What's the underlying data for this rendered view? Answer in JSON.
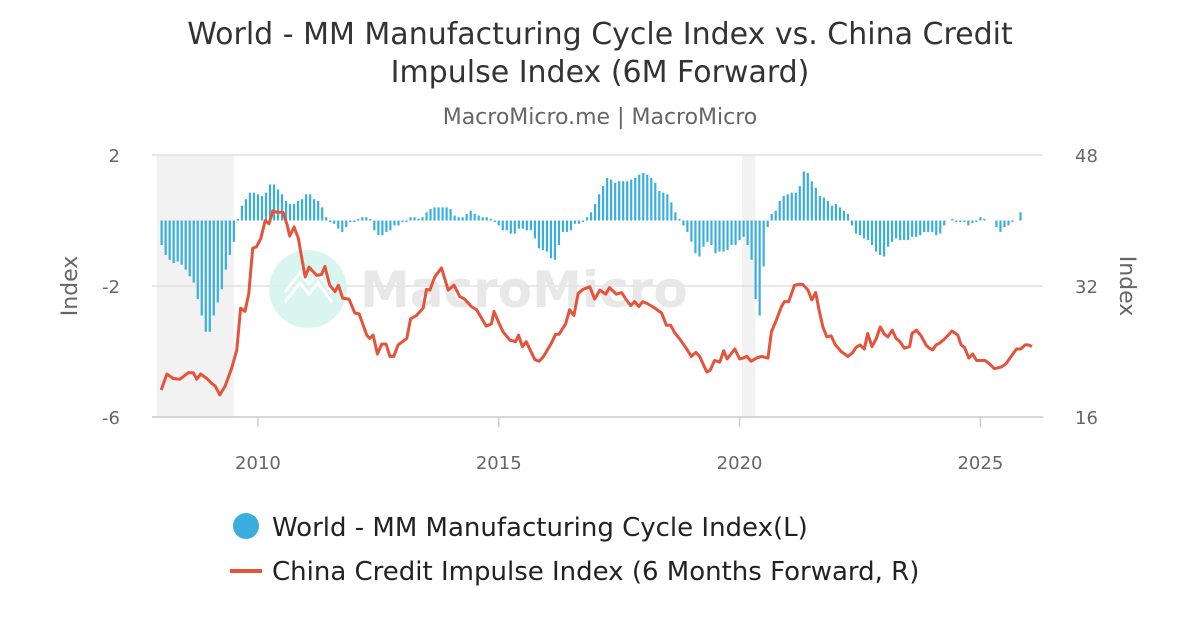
{
  "chart_data": {
    "type": "bar+line",
    "title_line1": "World - MM Manufacturing Cycle Index vs. China Credit",
    "title_line2": "Impulse Index (6M Forward)",
    "subtitle": "MacroMicro.me | MacroMicro",
    "watermark": "MacroMicro",
    "left_axis": {
      "label": "Index",
      "range": [
        -6,
        2
      ],
      "ticks": [
        2,
        -2,
        -6
      ],
      "tick_labels": [
        "2",
        "-2",
        "-6"
      ]
    },
    "right_axis": {
      "label": "Index",
      "range": [
        16,
        48
      ],
      "ticks": [
        48,
        32,
        16
      ],
      "tick_labels": [
        "48",
        "32",
        "16"
      ]
    },
    "x_axis": {
      "range": [
        2007.8,
        2026.3
      ],
      "ticks": [
        2010,
        2015,
        2020,
        2025
      ],
      "tick_labels": [
        "2010",
        "2015",
        "2020",
        "2025"
      ]
    },
    "shaded_periods": [
      [
        2007.9,
        2009.5
      ],
      [
        2020.05,
        2020.33
      ]
    ],
    "grid": true,
    "legend_placement": "bottom",
    "colors": {
      "bars": "#3aafdf",
      "line": "#e5533a",
      "shade": "#f2f2f2",
      "grid": "#e0e0e0"
    },
    "series": [
      {
        "name": "World - MM Manufacturing Cycle Index(L)",
        "type": "bar",
        "axis": "left",
        "start": [
          2008,
          1
        ],
        "frequency": "monthly",
        "values": [
          -0.75,
          -1.05,
          -1.2,
          -1.3,
          -1.25,
          -1.35,
          -1.5,
          -1.7,
          -1.9,
          -2.4,
          -2.9,
          -3.4,
          -3.4,
          -2.9,
          -2.5,
          -2.1,
          -1.5,
          -1.05,
          -0.65,
          0.05,
          0.45,
          0.65,
          0.85,
          0.85,
          0.8,
          0.75,
          0.85,
          1.1,
          1.1,
          0.95,
          0.8,
          0.6,
          0.5,
          0.5,
          0.6,
          0.65,
          0.8,
          0.8,
          0.65,
          0.6,
          0.4,
          0.1,
          0,
          -0.1,
          -0.25,
          -0.35,
          -0.2,
          -0.05,
          0,
          0.05,
          0.1,
          0.1,
          0.05,
          -0.3,
          -0.45,
          -0.45,
          -0.35,
          -0.3,
          -0.15,
          -0.15,
          -0.05,
          0,
          0.1,
          0.1,
          0.05,
          0.1,
          0.25,
          0.35,
          0.4,
          0.4,
          0.4,
          0.4,
          0.35,
          0.15,
          0.1,
          0.1,
          0.2,
          0.3,
          0.2,
          0.15,
          0.1,
          0.1,
          0.05,
          -0.03,
          -0.15,
          -0.3,
          -0.3,
          -0.4,
          -0.4,
          -0.25,
          -0.25,
          -0.3,
          -0.3,
          -0.55,
          -0.85,
          -0.9,
          -0.95,
          -1.15,
          -1.2,
          -0.75,
          -0.35,
          -0.35,
          -0.3,
          -0.1,
          -0.1,
          0,
          0.1,
          0.25,
          0.5,
          0.8,
          1.05,
          1.3,
          1.25,
          1.15,
          1.2,
          1.2,
          1.2,
          1.25,
          1.3,
          1.4,
          1.45,
          1.4,
          1.3,
          1.15,
          0.9,
          0.85,
          0.8,
          0.55,
          0.25,
          0.05,
          -0.15,
          -0.35,
          -0.65,
          -1.0,
          -1.1,
          -0.8,
          -0.65,
          -0.75,
          -1.0,
          -0.95,
          -0.95,
          -0.9,
          -0.75,
          -0.75,
          -0.6,
          -0.5,
          -0.75,
          -1.2,
          -2.4,
          -2.9,
          -1.4,
          -0.2,
          0.2,
          0.3,
          0.6,
          0.75,
          0.8,
          0.85,
          0.85,
          1.05,
          1.5,
          1.45,
          1.2,
          1.0,
          0.75,
          0.7,
          0.6,
          0.45,
          0.5,
          0.4,
          0.3,
          0.2,
          -0.15,
          -0.4,
          -0.45,
          -0.55,
          -0.6,
          -0.75,
          -0.95,
          -1.05,
          -1.1,
          -0.8,
          -0.65,
          -0.55,
          -0.6,
          -0.6,
          -0.6,
          -0.5,
          -0.5,
          -0.45,
          -0.35,
          -0.35,
          -0.35,
          -0.45,
          -0.4,
          -0.15,
          null,
          0.05,
          0,
          0,
          0,
          -0.15,
          -0.08,
          0,
          0.1,
          0.05,
          null,
          null,
          -0.2,
          -0.35,
          -0.2,
          -0.15,
          -0.05,
          null,
          0.25
        ]
      },
      {
        "name": "China Credit Impulse Index (6 Months Forward, R)",
        "type": "line",
        "axis": "right",
        "points": [
          [
            2007.99,
            19.3
          ],
          [
            2008.11,
            21.25
          ],
          [
            2008.24,
            20.7
          ],
          [
            2008.38,
            20.6
          ],
          [
            2008.55,
            21.4
          ],
          [
            2008.66,
            21.4
          ],
          [
            2008.73,
            20.6
          ],
          [
            2008.81,
            21.25
          ],
          [
            2008.94,
            20.7
          ],
          [
            2009.04,
            20.1
          ],
          [
            2009.11,
            19.8
          ],
          [
            2009.21,
            18.7
          ],
          [
            2009.32,
            19.8
          ],
          [
            2009.45,
            21.9
          ],
          [
            2009.56,
            24.2
          ],
          [
            2009.64,
            29.3
          ],
          [
            2009.73,
            28.9
          ],
          [
            2009.81,
            31.1
          ],
          [
            2009.89,
            36.6
          ],
          [
            2009.97,
            36.8
          ],
          [
            2010.06,
            37.8
          ],
          [
            2010.15,
            40.0
          ],
          [
            2010.23,
            39.6
          ],
          [
            2010.31,
            41.2
          ],
          [
            2010.39,
            41.0
          ],
          [
            2010.52,
            41.0
          ],
          [
            2010.61,
            39.4
          ],
          [
            2010.66,
            38.1
          ],
          [
            2010.75,
            39.2
          ],
          [
            2010.84,
            37.8
          ],
          [
            2010.91,
            35.4
          ],
          [
            2010.98,
            33.1
          ],
          [
            2011.06,
            34.3
          ],
          [
            2011.22,
            33.3
          ],
          [
            2011.32,
            33.4
          ],
          [
            2011.39,
            34.4
          ],
          [
            2011.49,
            32.1
          ],
          [
            2011.6,
            31.3
          ],
          [
            2011.67,
            32.1
          ],
          [
            2011.76,
            30.5
          ],
          [
            2011.89,
            30.4
          ],
          [
            2012.01,
            28.7
          ],
          [
            2012.1,
            28.6
          ],
          [
            2012.26,
            26.0
          ],
          [
            2012.32,
            25.6
          ],
          [
            2012.39,
            26.0
          ],
          [
            2012.48,
            23.7
          ],
          [
            2012.57,
            24.9
          ],
          [
            2012.66,
            24.9
          ],
          [
            2012.74,
            23.4
          ],
          [
            2012.82,
            23.4
          ],
          [
            2012.91,
            24.8
          ],
          [
            2013.09,
            25.6
          ],
          [
            2013.17,
            28.0
          ],
          [
            2013.29,
            28.4
          ],
          [
            2013.43,
            29.3
          ],
          [
            2013.5,
            31.6
          ],
          [
            2013.57,
            31.5
          ],
          [
            2013.67,
            33.1
          ],
          [
            2013.81,
            34.2
          ],
          [
            2013.95,
            31.5
          ],
          [
            2014.07,
            32.1
          ],
          [
            2014.19,
            30.7
          ],
          [
            2014.29,
            30.4
          ],
          [
            2014.43,
            29.5
          ],
          [
            2014.54,
            29.1
          ],
          [
            2014.74,
            27.1
          ],
          [
            2014.85,
            27.4
          ],
          [
            2014.9,
            28.9
          ],
          [
            2015.01,
            27.4
          ],
          [
            2015.09,
            26.4
          ],
          [
            2015.23,
            25.4
          ],
          [
            2015.35,
            25.2
          ],
          [
            2015.41,
            26.0
          ],
          [
            2015.49,
            24.6
          ],
          [
            2015.57,
            25.2
          ],
          [
            2015.75,
            23.0
          ],
          [
            2015.84,
            22.8
          ],
          [
            2015.93,
            23.4
          ],
          [
            2016.09,
            25.0
          ],
          [
            2016.18,
            26.1
          ],
          [
            2016.25,
            26.1
          ],
          [
            2016.39,
            27.4
          ],
          [
            2016.47,
            29.1
          ],
          [
            2016.56,
            28.4
          ],
          [
            2016.65,
            31.1
          ],
          [
            2016.75,
            31.6
          ],
          [
            2016.89,
            31.9
          ],
          [
            2016.99,
            30.4
          ],
          [
            2017.1,
            31.5
          ],
          [
            2017.22,
            31.0
          ],
          [
            2017.3,
            31.8
          ],
          [
            2017.44,
            31.0
          ],
          [
            2017.55,
            31.2
          ],
          [
            2017.65,
            30.3
          ],
          [
            2017.74,
            29.6
          ],
          [
            2017.82,
            30.1
          ],
          [
            2017.91,
            29.5
          ],
          [
            2017.99,
            30.1
          ],
          [
            2018.1,
            29.8
          ],
          [
            2018.24,
            29.3
          ],
          [
            2018.38,
            28.7
          ],
          [
            2018.48,
            27.2
          ],
          [
            2018.57,
            27.2
          ],
          [
            2018.65,
            26.3
          ],
          [
            2018.76,
            25.5
          ],
          [
            2018.89,
            24.4
          ],
          [
            2019.0,
            23.4
          ],
          [
            2019.09,
            23.9
          ],
          [
            2019.17,
            23.4
          ],
          [
            2019.32,
            21.5
          ],
          [
            2019.39,
            21.7
          ],
          [
            2019.48,
            22.9
          ],
          [
            2019.59,
            22.7
          ],
          [
            2019.67,
            24.1
          ],
          [
            2019.74,
            23.1
          ],
          [
            2019.9,
            24.3
          ],
          [
            2020.0,
            23.1
          ],
          [
            2020.07,
            23.2
          ],
          [
            2020.15,
            23.4
          ],
          [
            2020.24,
            22.8
          ],
          [
            2020.35,
            23.2
          ],
          [
            2020.45,
            23.4
          ],
          [
            2020.59,
            23.2
          ],
          [
            2020.66,
            26.4
          ],
          [
            2020.76,
            27.8
          ],
          [
            2020.87,
            29.5
          ],
          [
            2020.93,
            30.1
          ],
          [
            2021.02,
            30.1
          ],
          [
            2021.14,
            32.1
          ],
          [
            2021.24,
            32.2
          ],
          [
            2021.31,
            32.2
          ],
          [
            2021.42,
            31.5
          ],
          [
            2021.5,
            30.3
          ],
          [
            2021.58,
            31.2
          ],
          [
            2021.65,
            29.1
          ],
          [
            2021.73,
            27.0
          ],
          [
            2021.81,
            25.8
          ],
          [
            2021.9,
            25.9
          ],
          [
            2021.99,
            24.8
          ],
          [
            2022.11,
            24.0
          ],
          [
            2022.25,
            23.4
          ],
          [
            2022.34,
            23.8
          ],
          [
            2022.42,
            24.5
          ],
          [
            2022.5,
            24.8
          ],
          [
            2022.59,
            24.3
          ],
          [
            2022.66,
            26.2
          ],
          [
            2022.75,
            24.6
          ],
          [
            2022.84,
            25.6
          ],
          [
            2022.92,
            27.0
          ],
          [
            2023.01,
            26.1
          ],
          [
            2023.08,
            25.8
          ],
          [
            2023.17,
            26.6
          ],
          [
            2023.25,
            25.6
          ],
          [
            2023.33,
            25.2
          ],
          [
            2023.42,
            24.4
          ],
          [
            2023.53,
            24.6
          ],
          [
            2023.58,
            26.2
          ],
          [
            2023.67,
            26.6
          ],
          [
            2023.77,
            25.9
          ],
          [
            2023.87,
            24.8
          ],
          [
            2023.94,
            24.4
          ],
          [
            2024.01,
            24.2
          ],
          [
            2024.08,
            24.8
          ],
          [
            2024.15,
            25.0
          ],
          [
            2024.27,
            25.6
          ],
          [
            2024.41,
            26.5
          ],
          [
            2024.53,
            26.0
          ],
          [
            2024.6,
            24.8
          ],
          [
            2024.67,
            24.5
          ],
          [
            2024.76,
            23.2
          ],
          [
            2024.84,
            23.7
          ],
          [
            2024.92,
            22.9
          ],
          [
            2025.1,
            22.9
          ],
          [
            2025.19,
            22.5
          ],
          [
            2025.29,
            21.9
          ],
          [
            2025.43,
            22.1
          ],
          [
            2025.53,
            22.5
          ],
          [
            2025.64,
            23.4
          ],
          [
            2025.75,
            24.3
          ],
          [
            2025.84,
            24.3
          ],
          [
            2025.93,
            24.8
          ],
          [
            2026.0,
            24.8
          ],
          [
            2026.07,
            24.6
          ]
        ]
      }
    ]
  }
}
